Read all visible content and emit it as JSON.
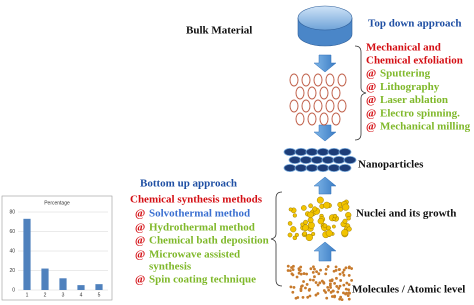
{
  "bulk_label": "Bulk Material",
  "nanoparticles_label": "Nanoparticles",
  "nuclei_label": "Nuclei and its growth",
  "molecules_label": "Molecules / Atomic level",
  "top_down": {
    "title": "Top down approach",
    "subtitle_lines": [
      "Mechanical and",
      "Chemical exfoliation"
    ],
    "bullet": "@",
    "items": [
      "Sputtering",
      "Lithography",
      "Laser ablation",
      "Electro spinning.",
      "Mechanical milling"
    ]
  },
  "bottom_up": {
    "title": "Bottom up approach",
    "subtitle": "Chemical synthesis methods",
    "bullet": "@",
    "items": [
      "Solvothermal method",
      "Hydrothermal method",
      "Chemical bath deposition",
      "Microwave assisted",
      "synthesis",
      "Spin coating  technique"
    ]
  },
  "inset_chart": {
    "type": "bar",
    "title": "Percentage",
    "categories": [
      "1",
      "2",
      "3",
      "4",
      "5"
    ],
    "values": [
      73,
      22,
      12,
      5,
      6
    ],
    "color": "#4f81bd",
    "ylim": [
      0,
      80
    ],
    "yticks": [
      0,
      20,
      40,
      60,
      80
    ],
    "grid": true
  }
}
